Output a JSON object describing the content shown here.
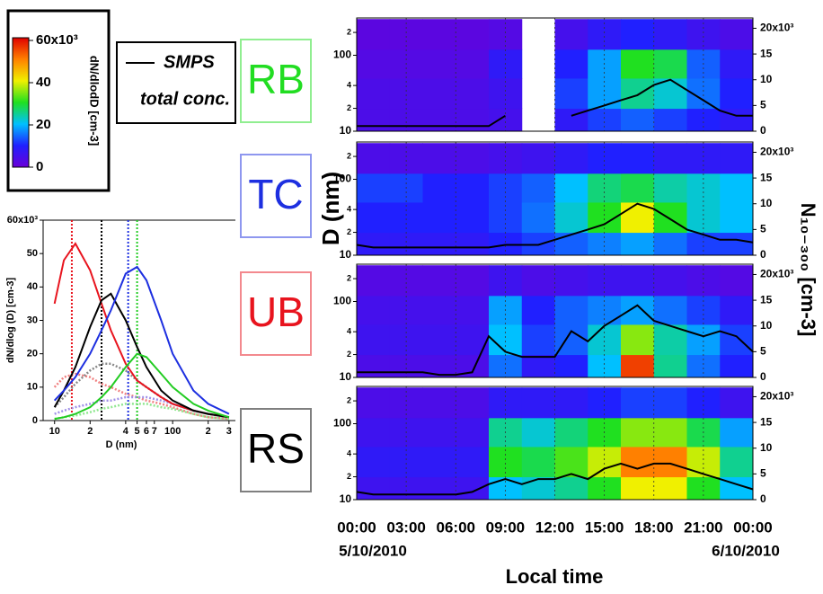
{
  "chart_data": [
    {
      "type": "colorbar",
      "label": "dN/dlodD [cm-3]",
      "zlim": [
        0,
        60
      ],
      "zticks": [
        0,
        20,
        40,
        {
          "value": 60,
          "label": "60x10³"
        }
      ],
      "colorscale": [
        "#6a00d8",
        "#2020ff",
        "#00c0ff",
        "#20e020",
        "#f0f000",
        "#ff8000",
        "#e00000"
      ]
    },
    {
      "type": "line",
      "xlabel": "D (nm)",
      "ylabel": "dN/dlog (D) [cm-3]",
      "log_x": true,
      "xlim": [
        8,
        340
      ],
      "ylim": [
        0,
        60
      ],
      "xticks": [
        10,
        {
          "value": 20,
          "label": "2"
        },
        {
          "value": 40,
          "label": "4"
        },
        {
          "value": 50,
          "label": "5"
        },
        {
          "value": 60,
          "label": "6"
        },
        {
          "value": 70,
          "label": "7"
        },
        100,
        {
          "value": 200,
          "label": "2"
        },
        {
          "value": 300,
          "label": "3"
        }
      ],
      "yticks": [
        0,
        10,
        20,
        30,
        40,
        50,
        {
          "value": 60,
          "label": "60x10³"
        }
      ],
      "x": [
        10,
        12,
        15,
        20,
        25,
        30,
        40,
        50,
        60,
        80,
        100,
        150,
        200,
        300
      ],
      "series": [
        {
          "color": "#f08080",
          "style": "dotted",
          "values": [
            10,
            13,
            14,
            13,
            11,
            10,
            8,
            7,
            6,
            5,
            4,
            2,
            1,
            0.5
          ]
        },
        {
          "color": "#888888",
          "style": "dotted",
          "values": [
            4,
            7,
            11,
            15,
            17,
            17,
            15,
            12,
            10,
            7,
            5,
            3,
            2,
            1
          ]
        },
        {
          "color": "#a090e8",
          "style": "dotted",
          "values": [
            2,
            3,
            4,
            5,
            6,
            6,
            7,
            7,
            7,
            6,
            5,
            3,
            2,
            1
          ]
        },
        {
          "color": "#90e890",
          "style": "dotted",
          "values": [
            0.5,
            1,
            1.5,
            2.5,
            3.5,
            4,
            5,
            5,
            5,
            4,
            3.5,
            2,
            1,
            0.5
          ]
        },
        {
          "color": "#e8141e",
          "style": "solid",
          "values": [
            35,
            48,
            53,
            45,
            35,
            27,
            17,
            12,
            10,
            7,
            5,
            3,
            2,
            1
          ]
        },
        {
          "color": "#000000",
          "style": "solid",
          "values": [
            4,
            9,
            16,
            28,
            36,
            38,
            30,
            22,
            16,
            9,
            6,
            3,
            2,
            1
          ]
        },
        {
          "color": "#1d2fe0",
          "style": "solid",
          "values": [
            6,
            9,
            13,
            20,
            27,
            33,
            44,
            46,
            42,
            30,
            20,
            9,
            5,
            2
          ]
        },
        {
          "color": "#22cc22",
          "style": "solid",
          "values": [
            0.5,
            1,
            2,
            4,
            7,
            10,
            16,
            20,
            19,
            14,
            10,
            5,
            3,
            1
          ]
        }
      ],
      "vlines": [
        {
          "x": 14,
          "color": "#e8141e"
        },
        {
          "x": 25,
          "color": "#000000"
        },
        {
          "x": 42,
          "color": "#1d2fe0"
        },
        {
          "x": 50,
          "color": "#22cc22"
        }
      ]
    },
    {
      "type": "heatmap",
      "site": "RB",
      "site_color": "#22dd22",
      "log_y": true,
      "ylim": [
        10,
        310
      ],
      "yticks": [
        10,
        {
          "value": 20,
          "label": "2"
        },
        {
          "value": 40,
          "label": "4"
        },
        100,
        {
          "value": 200,
          "label": "2"
        }
      ],
      "y2lim": [
        0,
        22
      ],
      "y2ticks": [
        0,
        5,
        10,
        15,
        {
          "value": 20,
          "label": "20x10³"
        }
      ],
      "x_bins": [
        0,
        2,
        4,
        6,
        8,
        10,
        12,
        14,
        16,
        18,
        20,
        22,
        24
      ],
      "y_bins": [
        10,
        20,
        50,
        120,
        300
      ],
      "z": [
        [
          4,
          4,
          4,
          4,
          5,
          null,
          8,
          12,
          14,
          12,
          10,
          8
        ],
        [
          4,
          4,
          4,
          4,
          6,
          null,
          12,
          18,
          25,
          22,
          15,
          10
        ],
        [
          3,
          3,
          3,
          3,
          8,
          null,
          10,
          18,
          30,
          28,
          14,
          8
        ],
        [
          2,
          2,
          2,
          2,
          3,
          null,
          5,
          8,
          10,
          8,
          6,
          4
        ]
      ],
      "x": [
        0,
        1,
        2,
        3,
        4,
        5,
        6,
        7,
        8,
        9,
        10,
        11,
        12,
        13,
        14,
        15,
        16,
        17,
        18,
        19,
        20,
        21,
        22,
        23,
        24
      ],
      "series": [
        {
          "color": "#000000",
          "axis": "y2",
          "values": [
            1,
            1,
            1,
            1,
            1,
            1,
            1,
            1,
            1,
            3,
            null,
            null,
            null,
            3,
            4,
            5,
            6,
            7,
            9,
            10,
            8,
            6,
            4,
            3,
            3
          ]
        }
      ]
    },
    {
      "type": "heatmap",
      "site": "TC",
      "site_color": "#1d2fe0",
      "log_y": true,
      "ylim": [
        10,
        310
      ],
      "yticks": [
        10,
        {
          "value": 20,
          "label": "2"
        },
        {
          "value": 40,
          "label": "4"
        },
        100,
        {
          "value": 200,
          "label": "2"
        }
      ],
      "y2lim": [
        0,
        22
      ],
      "y2ticks": [
        0,
        5,
        10,
        15,
        {
          "value": 20,
          "label": "20x10³"
        }
      ],
      "x_bins": [
        0,
        2,
        4,
        6,
        8,
        10,
        12,
        14,
        16,
        18,
        20,
        22,
        24
      ],
      "y_bins": [
        10,
        20,
        50,
        120,
        300
      ],
      "z": [
        [
          8,
          8,
          8,
          8,
          10,
          12,
          14,
          16,
          18,
          15,
          12,
          12
        ],
        [
          10,
          10,
          10,
          10,
          12,
          15,
          22,
          30,
          40,
          30,
          22,
          20
        ],
        [
          12,
          12,
          10,
          10,
          12,
          14,
          20,
          26,
          28,
          24,
          22,
          20
        ],
        [
          4,
          4,
          4,
          4,
          5,
          6,
          8,
          10,
          10,
          8,
          8,
          8
        ]
      ],
      "x": [
        0,
        1,
        2,
        3,
        4,
        5,
        6,
        7,
        8,
        9,
        10,
        11,
        12,
        13,
        14,
        15,
        16,
        17,
        18,
        19,
        20,
        21,
        22,
        23,
        24
      ],
      "series": [
        {
          "color": "#000000",
          "axis": "y2",
          "values": [
            2,
            1.5,
            1.5,
            1.5,
            1.5,
            1.5,
            1.5,
            1.5,
            1.5,
            2,
            2,
            2,
            3,
            4,
            5,
            6,
            8,
            10,
            9,
            7,
            5,
            4,
            3,
            3,
            2.5
          ]
        }
      ]
    },
    {
      "type": "heatmap",
      "site": "UB",
      "site_color": "#e8141e",
      "log_y": true,
      "ylim": [
        10,
        310
      ],
      "yticks": [
        10,
        {
          "value": 20,
          "label": "2"
        },
        {
          "value": 40,
          "label": "4"
        },
        100,
        {
          "value": 200,
          "label": "2"
        }
      ],
      "y2lim": [
        0,
        22
      ],
      "y2ticks": [
        0,
        5,
        10,
        15,
        {
          "value": 20,
          "label": "20x10³"
        }
      ],
      "x_bins": [
        0,
        2,
        4,
        6,
        8,
        10,
        12,
        14,
        16,
        18,
        20,
        22,
        24
      ],
      "y_bins": [
        10,
        20,
        50,
        120,
        300
      ],
      "z": [
        [
          4,
          4,
          4,
          4,
          15,
          8,
          10,
          20,
          55,
          25,
          15,
          10
        ],
        [
          6,
          6,
          6,
          6,
          20,
          12,
          14,
          22,
          35,
          24,
          18,
          12
        ],
        [
          5,
          5,
          5,
          5,
          18,
          10,
          14,
          16,
          18,
          15,
          12,
          8
        ],
        [
          3,
          3,
          3,
          3,
          6,
          4,
          5,
          6,
          6,
          5,
          4,
          3
        ]
      ],
      "x": [
        0,
        1,
        2,
        3,
        4,
        5,
        6,
        7,
        8,
        9,
        10,
        11,
        12,
        13,
        14,
        15,
        16,
        17,
        18,
        19,
        20,
        21,
        22,
        23,
        24
      ],
      "series": [
        {
          "color": "#000000",
          "axis": "y2",
          "values": [
            1,
            1,
            1,
            1,
            1,
            0.5,
            0.5,
            1,
            8,
            5,
            4,
            4,
            4,
            9,
            7,
            10,
            12,
            14,
            11,
            10,
            9,
            8,
            9,
            8,
            5
          ]
        }
      ]
    },
    {
      "type": "heatmap",
      "site": "RS",
      "site_color": "#000000",
      "log_y": true,
      "ylim": [
        10,
        310
      ],
      "yticks": [
        10,
        {
          "value": 20,
          "label": "2"
        },
        {
          "value": 40,
          "label": "4"
        },
        100,
        {
          "value": 200,
          "label": "2"
        }
      ],
      "y2lim": [
        0,
        22
      ],
      "y2ticks": [
        0,
        5,
        10,
        15,
        {
          "value": 20,
          "label": "20x10³"
        }
      ],
      "x_bins": [
        0,
        2,
        4,
        6,
        8,
        10,
        12,
        14,
        16,
        18,
        20,
        22,
        24
      ],
      "y_bins": [
        10,
        20,
        50,
        120,
        300
      ],
      "z": [
        [
          6,
          6,
          6,
          6,
          20,
          22,
          25,
          30,
          40,
          40,
          30,
          20
        ],
        [
          8,
          8,
          8,
          8,
          30,
          28,
          32,
          38,
          50,
          50,
          38,
          25
        ],
        [
          6,
          6,
          6,
          6,
          25,
          22,
          26,
          30,
          35,
          35,
          28,
          18
        ],
        [
          4,
          4,
          4,
          4,
          8,
          8,
          8,
          10,
          12,
          12,
          10,
          6
        ]
      ],
      "x": [
        0,
        1,
        2,
        3,
        4,
        5,
        6,
        7,
        8,
        9,
        10,
        11,
        12,
        13,
        14,
        15,
        16,
        17,
        18,
        19,
        20,
        21,
        22,
        23,
        24
      ],
      "series": [
        {
          "color": "#000000",
          "axis": "y2",
          "values": [
            1.5,
            1,
            1,
            1,
            1,
            1,
            1,
            1.5,
            3,
            4,
            3,
            4,
            4,
            5,
            4,
            6,
            7,
            6,
            7,
            7,
            6,
            5,
            4,
            3,
            2
          ]
        }
      ]
    }
  ],
  "shared": {
    "legend": [
      "SMPS",
      "total conc."
    ],
    "ylabel": "D (nm)",
    "y2label": "N₁₀₋₃₀₀ [cm-3]",
    "xlabel": "Local time",
    "dates": [
      "5/10/2010",
      "6/10/2010"
    ],
    "xlim": [
      0,
      24
    ],
    "xticks": [
      {
        "value": 0,
        "label": "00:00"
      },
      {
        "value": 3,
        "label": "03:00"
      },
      {
        "value": 6,
        "label": "06:00"
      },
      {
        "value": 9,
        "label": "09:00"
      },
      {
        "value": 12,
        "label": "12:00"
      },
      {
        "value": 15,
        "label": "15:00"
      },
      {
        "value": 18,
        "label": "18:00"
      },
      {
        "value": 21,
        "label": "21:00"
      },
      {
        "value": 24,
        "label": "00:00"
      }
    ]
  }
}
